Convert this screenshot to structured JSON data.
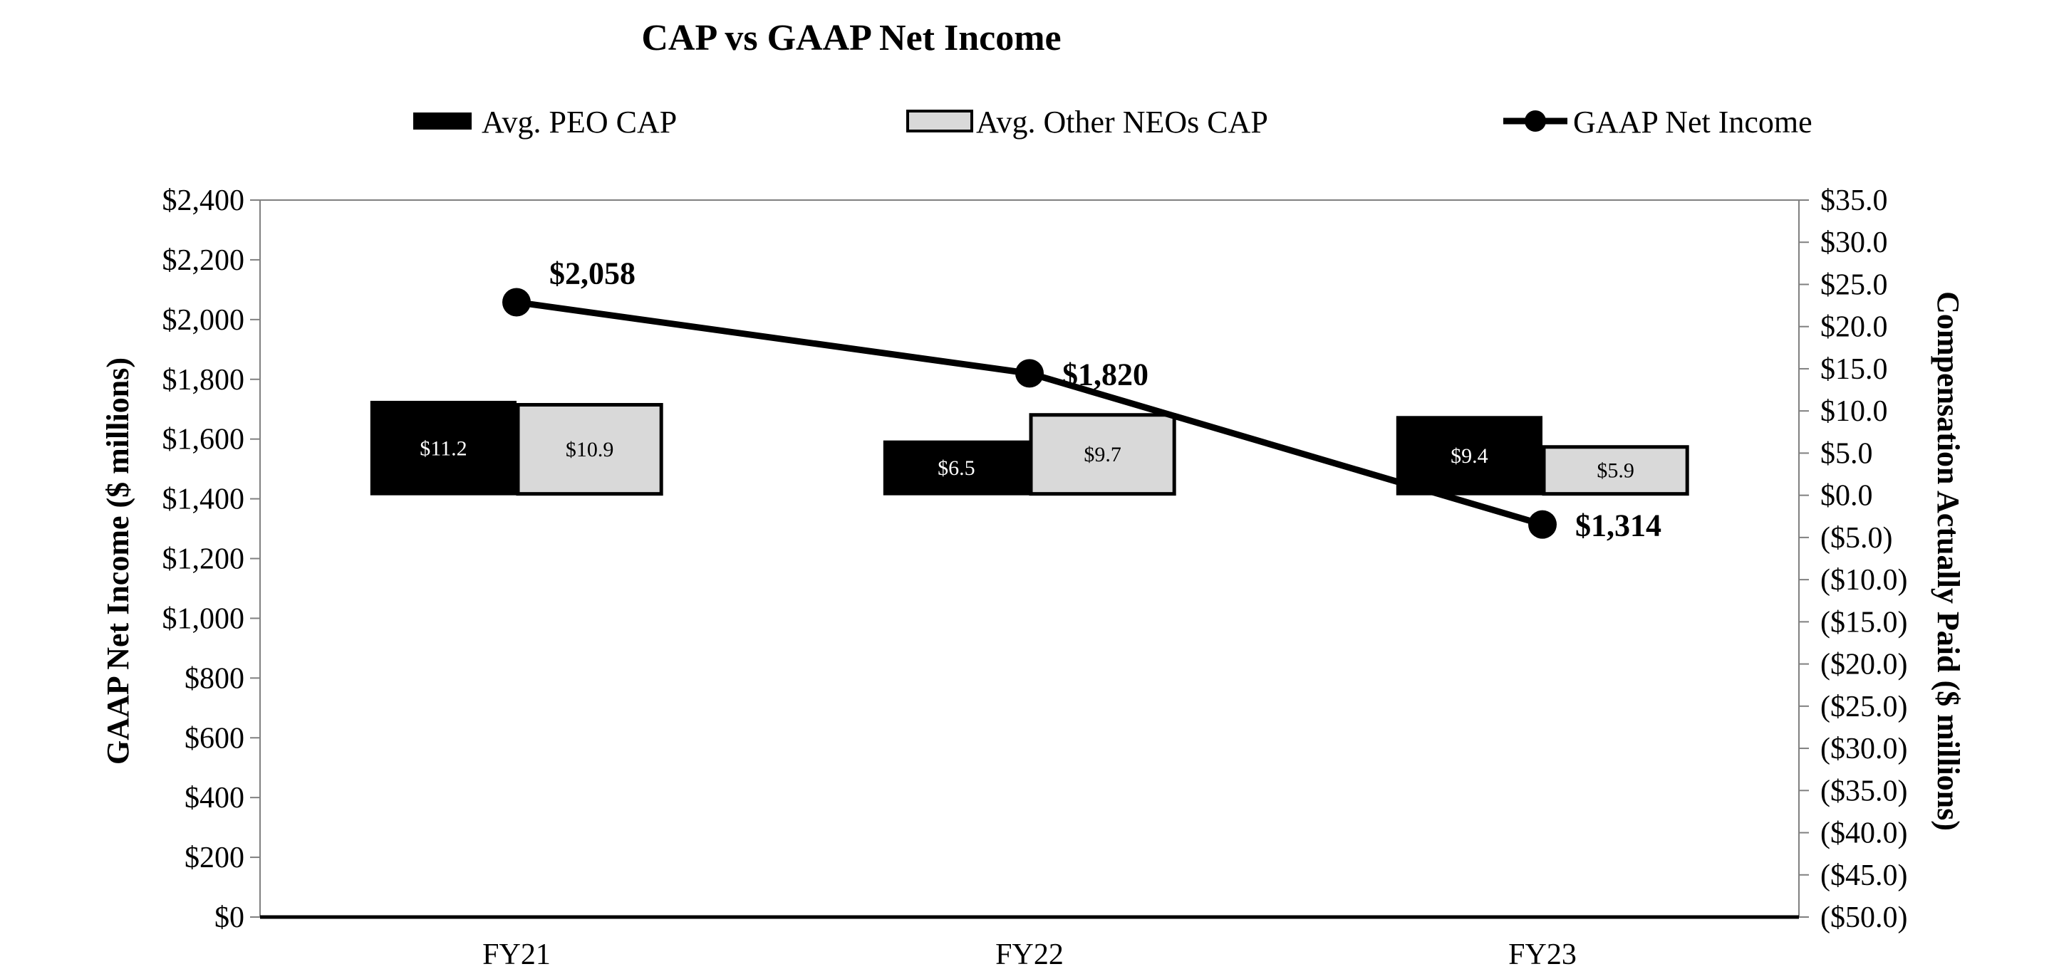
{
  "chart_data": {
    "type": "bar",
    "title": "CAP vs GAAP Net Income",
    "categories": [
      "FY21",
      "FY22",
      "FY23"
    ],
    "left_axis": {
      "label": "GAAP Net Income ($ millions)",
      "min": 0,
      "max": 2400,
      "step": 200,
      "tick_labels": [
        "$0",
        "$200",
        "$400",
        "$600",
        "$800",
        "$1,000",
        "$1,200",
        "$1,400",
        "$1,600",
        "$1,800",
        "$2,000",
        "$2,200",
        "$2,400"
      ]
    },
    "right_axis": {
      "label": "Compensation Actually Paid ($ millions)",
      "min": -50,
      "max": 35,
      "step": 5,
      "tick_labels": [
        "($50.0)",
        "($45.0)",
        "($40.0)",
        "($35.0)",
        "($30.0)",
        "($25.0)",
        "($20.0)",
        "($15.0)",
        "($10.0)",
        "($5.0)",
        "$0.0",
        "$5.0",
        "$10.0",
        "$15.0",
        "$20.0",
        "$25.0",
        "$30.0",
        "$35.0"
      ]
    },
    "series": [
      {
        "name": "Avg. PEO CAP",
        "kind": "bar",
        "axis": "right",
        "color": "#000000",
        "values": [
          11.2,
          6.5,
          9.4
        ],
        "labels": [
          "$11.2",
          "$6.5",
          "$9.4"
        ]
      },
      {
        "name": "Avg. Other NEOs CAP",
        "kind": "bar",
        "axis": "right",
        "color": "#d9d9d9",
        "values": [
          10.9,
          9.7,
          5.9
        ],
        "labels": [
          "$10.9",
          "$9.7",
          "$5.9"
        ]
      },
      {
        "name": "GAAP Net Income",
        "kind": "line",
        "axis": "left",
        "color": "#000000",
        "values": [
          2058,
          1820,
          1314
        ],
        "labels": [
          "$2,058",
          "$1,820",
          "$1,314"
        ]
      }
    ],
    "legend_position": "top",
    "grid": false
  }
}
